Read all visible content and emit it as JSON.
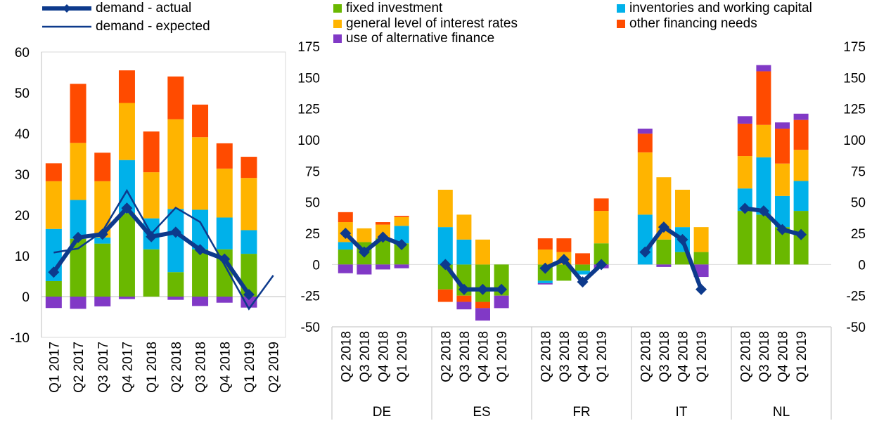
{
  "legend_left": [
    {
      "label": "demand - actual",
      "color": "#0d3a8c"
    },
    {
      "label": "demand - expected",
      "color": "#0d3a8c"
    }
  ],
  "legend_right": [
    {
      "label": "fixed investment",
      "color": "#6ab800"
    },
    {
      "label": "inventories and working capital",
      "color": "#00b1ea"
    },
    {
      "label": "general level of interest rates",
      "color": "#ffb400"
    },
    {
      "label": "other financing needs",
      "color": "#ff4b00"
    },
    {
      "label": "use of alternative finance",
      "color": "#8139c6"
    }
  ],
  "chart_data": [
    {
      "type": "bar",
      "stacked": true,
      "categories": [
        "Q1 2017",
        "Q2 2017",
        "Q3 2017",
        "Q4 2017",
        "Q1 2018",
        "Q2 2018",
        "Q3 2018",
        "Q4 2018",
        "Q1 2019",
        "Q2 2019"
      ],
      "ylim": [
        -10,
        60
      ],
      "yticks": [
        "60",
        "50",
        "40",
        "30",
        "20",
        "10",
        "0",
        "-10"
      ],
      "series": [
        {
          "name": "fixed investment",
          "color": "#6ab800",
          "values": [
            3.8,
            14.2,
            13.0,
            20.5,
            11.6,
            6.0,
            11.6,
            11.6,
            10.5,
            null
          ]
        },
        {
          "name": "inventories and working capital",
          "color": "#00b1ea",
          "values": [
            12.8,
            9.5,
            1.5,
            13.0,
            7.6,
            15.5,
            9.7,
            7.8,
            5.8,
            null
          ]
        },
        {
          "name": "general level of interest rates",
          "color": "#ffb400",
          "values": [
            11.7,
            14.0,
            13.8,
            14.0,
            11.3,
            22.0,
            17.8,
            12.0,
            12.8,
            null
          ]
        },
        {
          "name": "other financing needs",
          "color": "#ff4b00",
          "values": [
            4.4,
            14.5,
            7.0,
            8.0,
            10.0,
            10.5,
            8.0,
            6.2,
            5.2,
            null
          ]
        },
        {
          "name": "use of alternative finance",
          "color": "#8139c6",
          "values": [
            -2.8,
            -3.0,
            -2.4,
            -0.6,
            0,
            -0.8,
            -2.3,
            -1.5,
            -2.7,
            null
          ]
        }
      ],
      "lines": [
        {
          "name": "demand - actual",
          "color": "#0d3a8c",
          "values": [
            6.0,
            14.5,
            15.3,
            21.7,
            14.7,
            15.8,
            11.5,
            9.2,
            0.5,
            null
          ],
          "marker": "diamond"
        },
        {
          "name": "demand - expected",
          "color": "#0d3a8c",
          "values": [
            10.8,
            11.8,
            16.0,
            26.0,
            15.4,
            21.8,
            18.3,
            7.8,
            -3.0,
            5.2
          ]
        }
      ]
    },
    {
      "type": "bar",
      "stacked": true,
      "groups": [
        "DE",
        "ES",
        "FR",
        "IT",
        "NL"
      ],
      "categories": [
        "Q2 2018",
        "Q3 2018",
        "Q4 2018",
        "Q1 2019"
      ],
      "ylim": [
        -50,
        175
      ],
      "yticks": [
        "175",
        "150",
        "125",
        "100",
        "75",
        "50",
        "25",
        "0",
        "-25",
        "-50"
      ],
      "series": [
        {
          "name": "fixed investment",
          "color": "#6ab800",
          "values": {
            "DE": [
              12,
              18,
              21,
              17
            ],
            "ES": [
              -20,
              -25,
              -30,
              -25
            ],
            "FR": [
              -13,
              -13,
              -5,
              17
            ],
            "IT": [
              0,
              20,
              10,
              10
            ],
            "NL": [
              43,
              40,
              30,
              43
            ]
          }
        },
        {
          "name": "inventories and working capital",
          "color": "#00b1ea",
          "values": {
            "DE": [
              6,
              0,
              0,
              14
            ],
            "ES": [
              30,
              20,
              0,
              0
            ],
            "FR": [
              -2,
              0,
              -3,
              0
            ],
            "IT": [
              40,
              0,
              20,
              0
            ],
            "NL": [
              18,
              46,
              25,
              24
            ]
          }
        },
        {
          "name": "general level of interest rates",
          "color": "#ffb400",
          "values": {
            "DE": [
              16,
              11,
              11,
              7
            ],
            "ES": [
              30,
              20,
              20,
              0
            ],
            "FR": [
              12,
              10,
              0,
              26
            ],
            "IT": [
              50,
              50,
              30,
              20
            ],
            "NL": [
              26,
              26,
              26,
              25
            ]
          }
        },
        {
          "name": "other financing needs",
          "color": "#ff4b00",
          "values": {
            "DE": [
              8,
              0,
              2,
              1
            ],
            "ES": [
              -10,
              -5,
              -5,
              0
            ],
            "FR": [
              9,
              11,
              9,
              10
            ],
            "IT": [
              15,
              0,
              0,
              0
            ],
            "NL": [
              26,
              43,
              28,
              24
            ]
          }
        },
        {
          "name": "use of alternative finance",
          "color": "#8139c6",
          "values": {
            "DE": [
              -7,
              -8,
              -4,
              -3
            ],
            "ES": [
              0,
              -6,
              -10,
              -10
            ],
            "FR": [
              -1,
              0,
              0,
              -3
            ],
            "IT": [
              4,
              -2,
              0,
              -10
            ],
            "NL": [
              6,
              5,
              5,
              5
            ]
          }
        }
      ],
      "lines": [
        {
          "name": "demand - actual",
          "color": "#0d3a8c",
          "marker": "diamond",
          "values": {
            "DE": [
              25,
              10,
              22,
              16
            ],
            "ES": [
              0,
              -20,
              -20,
              -20
            ],
            "FR": [
              -3,
              4,
              -14,
              0
            ],
            "IT": [
              10,
              30,
              20,
              -20
            ],
            "NL": [
              45,
              43,
              28,
              24
            ]
          }
        }
      ]
    }
  ]
}
